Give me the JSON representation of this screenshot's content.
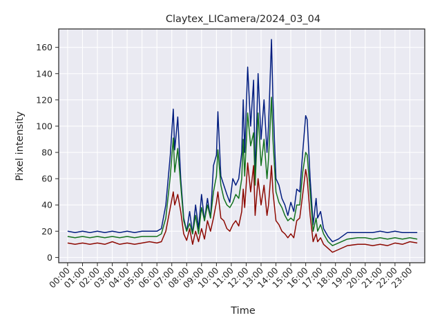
{
  "chart_data": {
    "type": "line",
    "title": "Claytex_LICamera/2024_03_04",
    "xlabel": "Time",
    "ylabel": "Pixel intensity",
    "xlim": [
      -0.6,
      24.0
    ],
    "ylim": [
      -4,
      174
    ],
    "grid": true,
    "y_ticks": [
      0,
      20,
      40,
      60,
      80,
      100,
      120,
      140,
      160
    ],
    "x_ticks": [
      "00:00",
      "01:00",
      "02:00",
      "03:00",
      "04:00",
      "05:00",
      "06:00",
      "07:00",
      "08:00",
      "09:00",
      "10:00",
      "11:00",
      "12:00",
      "13:00",
      "14:00",
      "15:00",
      "16:00",
      "17:00",
      "18:00",
      "19:00",
      "20:00",
      "21:00",
      "22:00",
      "23:00"
    ],
    "x_tick_values": [
      0,
      1,
      2,
      3,
      4,
      5,
      6,
      7,
      8,
      9,
      10,
      11,
      12,
      13,
      14,
      15,
      16,
      17,
      18,
      19,
      20,
      21,
      22,
      23
    ],
    "colors": {
      "blue": "#001c7f",
      "green": "#12711c",
      "red": "#8c0800",
      "plot_bg": "#eaeaf2",
      "grid": "#ffffff"
    },
    "series": [
      {
        "color": "blue",
        "points": [
          [
            0,
            20
          ],
          [
            0.5,
            19
          ],
          [
            1,
            20
          ],
          [
            1.5,
            19
          ],
          [
            2,
            20
          ],
          [
            2.5,
            19
          ],
          [
            3,
            20
          ],
          [
            3.5,
            19
          ],
          [
            4,
            20
          ],
          [
            4.5,
            19
          ],
          [
            5,
            20
          ],
          [
            5.5,
            20
          ],
          [
            6,
            20
          ],
          [
            6.3,
            22
          ],
          [
            6.6,
            40
          ],
          [
            6.9,
            78
          ],
          [
            7.1,
            113
          ],
          [
            7.2,
            82
          ],
          [
            7.4,
            107
          ],
          [
            7.6,
            60
          ],
          [
            7.8,
            30
          ],
          [
            8.0,
            20
          ],
          [
            8.2,
            35
          ],
          [
            8.4,
            18
          ],
          [
            8.6,
            40
          ],
          [
            8.8,
            22
          ],
          [
            9.0,
            48
          ],
          [
            9.2,
            28
          ],
          [
            9.4,
            45
          ],
          [
            9.6,
            30
          ],
          [
            9.8,
            70
          ],
          [
            10.0,
            78
          ],
          [
            10.1,
            111
          ],
          [
            10.3,
            62
          ],
          [
            10.5,
            55
          ],
          [
            10.7,
            48
          ],
          [
            10.9,
            42
          ],
          [
            11.1,
            60
          ],
          [
            11.3,
            55
          ],
          [
            11.5,
            60
          ],
          [
            11.7,
            80
          ],
          [
            11.8,
            120
          ],
          [
            11.9,
            80
          ],
          [
            12.1,
            145
          ],
          [
            12.3,
            100
          ],
          [
            12.5,
            135
          ],
          [
            12.6,
            60
          ],
          [
            12.8,
            140
          ],
          [
            13.0,
            90
          ],
          [
            13.2,
            120
          ],
          [
            13.4,
            80
          ],
          [
            13.5,
            100
          ],
          [
            13.7,
            166
          ],
          [
            13.8,
            120
          ],
          [
            14.0,
            60
          ],
          [
            14.2,
            55
          ],
          [
            14.4,
            45
          ],
          [
            14.6,
            40
          ],
          [
            14.8,
            32
          ],
          [
            15.0,
            42
          ],
          [
            15.2,
            35
          ],
          [
            15.4,
            52
          ],
          [
            15.6,
            50
          ],
          [
            15.8,
            80
          ],
          [
            16.0,
            108
          ],
          [
            16.1,
            105
          ],
          [
            16.3,
            60
          ],
          [
            16.5,
            25
          ],
          [
            16.7,
            45
          ],
          [
            16.8,
            30
          ],
          [
            17.0,
            35
          ],
          [
            17.2,
            22
          ],
          [
            17.5,
            16
          ],
          [
            17.8,
            12
          ],
          [
            18.2,
            14
          ],
          [
            18.8,
            19
          ],
          [
            19.5,
            19
          ],
          [
            20,
            19
          ],
          [
            20.5,
            19
          ],
          [
            21,
            20
          ],
          [
            21.5,
            19
          ],
          [
            22,
            20
          ],
          [
            22.5,
            19
          ],
          [
            23,
            19
          ],
          [
            23.5,
            19
          ]
        ]
      },
      {
        "color": "green",
        "points": [
          [
            0,
            16
          ],
          [
            0.5,
            15
          ],
          [
            1,
            16
          ],
          [
            1.5,
            15
          ],
          [
            2,
            16
          ],
          [
            2.5,
            15
          ],
          [
            3,
            16
          ],
          [
            3.5,
            15
          ],
          [
            4,
            16
          ],
          [
            4.5,
            15
          ],
          [
            5,
            16
          ],
          [
            5.5,
            16
          ],
          [
            6,
            16
          ],
          [
            6.3,
            18
          ],
          [
            6.6,
            30
          ],
          [
            6.9,
            62
          ],
          [
            7.1,
            91
          ],
          [
            7.2,
            65
          ],
          [
            7.4,
            83
          ],
          [
            7.6,
            55
          ],
          [
            7.8,
            28
          ],
          [
            8.0,
            20
          ],
          [
            8.2,
            26
          ],
          [
            8.4,
            18
          ],
          [
            8.6,
            32
          ],
          [
            8.8,
            18
          ],
          [
            9.0,
            38
          ],
          [
            9.2,
            28
          ],
          [
            9.4,
            40
          ],
          [
            9.6,
            30
          ],
          [
            9.8,
            50
          ],
          [
            10.0,
            62
          ],
          [
            10.1,
            82
          ],
          [
            10.3,
            55
          ],
          [
            10.5,
            45
          ],
          [
            10.7,
            40
          ],
          [
            10.9,
            38
          ],
          [
            11.1,
            42
          ],
          [
            11.3,
            48
          ],
          [
            11.5,
            45
          ],
          [
            11.7,
            60
          ],
          [
            11.8,
            90
          ],
          [
            11.9,
            62
          ],
          [
            12.1,
            110
          ],
          [
            12.3,
            85
          ],
          [
            12.5,
            95
          ],
          [
            12.6,
            55
          ],
          [
            12.8,
            110
          ],
          [
            13.0,
            70
          ],
          [
            13.2,
            90
          ],
          [
            13.4,
            60
          ],
          [
            13.5,
            75
          ],
          [
            13.7,
            122
          ],
          [
            13.8,
            90
          ],
          [
            14.0,
            50
          ],
          [
            14.2,
            42
          ],
          [
            14.4,
            38
          ],
          [
            14.6,
            32
          ],
          [
            14.8,
            28
          ],
          [
            15.0,
            30
          ],
          [
            15.2,
            28
          ],
          [
            15.4,
            40
          ],
          [
            15.6,
            40
          ],
          [
            15.8,
            65
          ],
          [
            16.0,
            80
          ],
          [
            16.1,
            78
          ],
          [
            16.3,
            50
          ],
          [
            16.5,
            20
          ],
          [
            16.7,
            30
          ],
          [
            16.8,
            20
          ],
          [
            17.0,
            25
          ],
          [
            17.2,
            18
          ],
          [
            17.5,
            12
          ],
          [
            17.8,
            9
          ],
          [
            18.2,
            11
          ],
          [
            18.8,
            14
          ],
          [
            19.5,
            15
          ],
          [
            20,
            15
          ],
          [
            20.5,
            14
          ],
          [
            21,
            15
          ],
          [
            21.5,
            14
          ],
          [
            22,
            15
          ],
          [
            22.5,
            14
          ],
          [
            23,
            15
          ],
          [
            23.5,
            14
          ]
        ]
      },
      {
        "color": "red",
        "points": [
          [
            0,
            11
          ],
          [
            0.5,
            10
          ],
          [
            1,
            11
          ],
          [
            1.5,
            10
          ],
          [
            2,
            11
          ],
          [
            2.5,
            10
          ],
          [
            3,
            12
          ],
          [
            3.5,
            10
          ],
          [
            4,
            11
          ],
          [
            4.5,
            10
          ],
          [
            5,
            11
          ],
          [
            5.5,
            12
          ],
          [
            6,
            11
          ],
          [
            6.3,
            12
          ],
          [
            6.6,
            20
          ],
          [
            6.9,
            38
          ],
          [
            7.1,
            50
          ],
          [
            7.2,
            40
          ],
          [
            7.4,
            48
          ],
          [
            7.6,
            35
          ],
          [
            7.8,
            18
          ],
          [
            8.0,
            13
          ],
          [
            8.2,
            22
          ],
          [
            8.4,
            10
          ],
          [
            8.6,
            20
          ],
          [
            8.8,
            12
          ],
          [
            9.0,
            22
          ],
          [
            9.2,
            14
          ],
          [
            9.4,
            28
          ],
          [
            9.6,
            20
          ],
          [
            9.8,
            30
          ],
          [
            10.0,
            42
          ],
          [
            10.1,
            50
          ],
          [
            10.3,
            30
          ],
          [
            10.5,
            28
          ],
          [
            10.7,
            22
          ],
          [
            10.9,
            20
          ],
          [
            11.1,
            25
          ],
          [
            11.3,
            28
          ],
          [
            11.5,
            24
          ],
          [
            11.7,
            35
          ],
          [
            11.8,
            52
          ],
          [
            11.9,
            38
          ],
          [
            12.1,
            72
          ],
          [
            12.3,
            50
          ],
          [
            12.5,
            70
          ],
          [
            12.6,
            32
          ],
          [
            12.8,
            60
          ],
          [
            13.0,
            40
          ],
          [
            13.2,
            55
          ],
          [
            13.4,
            32
          ],
          [
            13.5,
            40
          ],
          [
            13.7,
            70
          ],
          [
            13.8,
            50
          ],
          [
            14.0,
            28
          ],
          [
            14.2,
            25
          ],
          [
            14.4,
            20
          ],
          [
            14.6,
            18
          ],
          [
            14.8,
            15
          ],
          [
            15.0,
            18
          ],
          [
            15.2,
            15
          ],
          [
            15.4,
            28
          ],
          [
            15.6,
            30
          ],
          [
            15.8,
            48
          ],
          [
            16.0,
            67
          ],
          [
            16.1,
            60
          ],
          [
            16.3,
            32
          ],
          [
            16.5,
            12
          ],
          [
            16.7,
            18
          ],
          [
            16.8,
            12
          ],
          [
            17.0,
            15
          ],
          [
            17.2,
            10
          ],
          [
            17.5,
            7
          ],
          [
            17.8,
            4
          ],
          [
            18.2,
            6
          ],
          [
            18.8,
            9
          ],
          [
            19.5,
            10
          ],
          [
            20,
            10
          ],
          [
            20.5,
            9
          ],
          [
            21,
            10
          ],
          [
            21.5,
            9
          ],
          [
            22,
            11
          ],
          [
            22.5,
            10
          ],
          [
            23,
            12
          ],
          [
            23.5,
            11
          ]
        ]
      }
    ]
  }
}
